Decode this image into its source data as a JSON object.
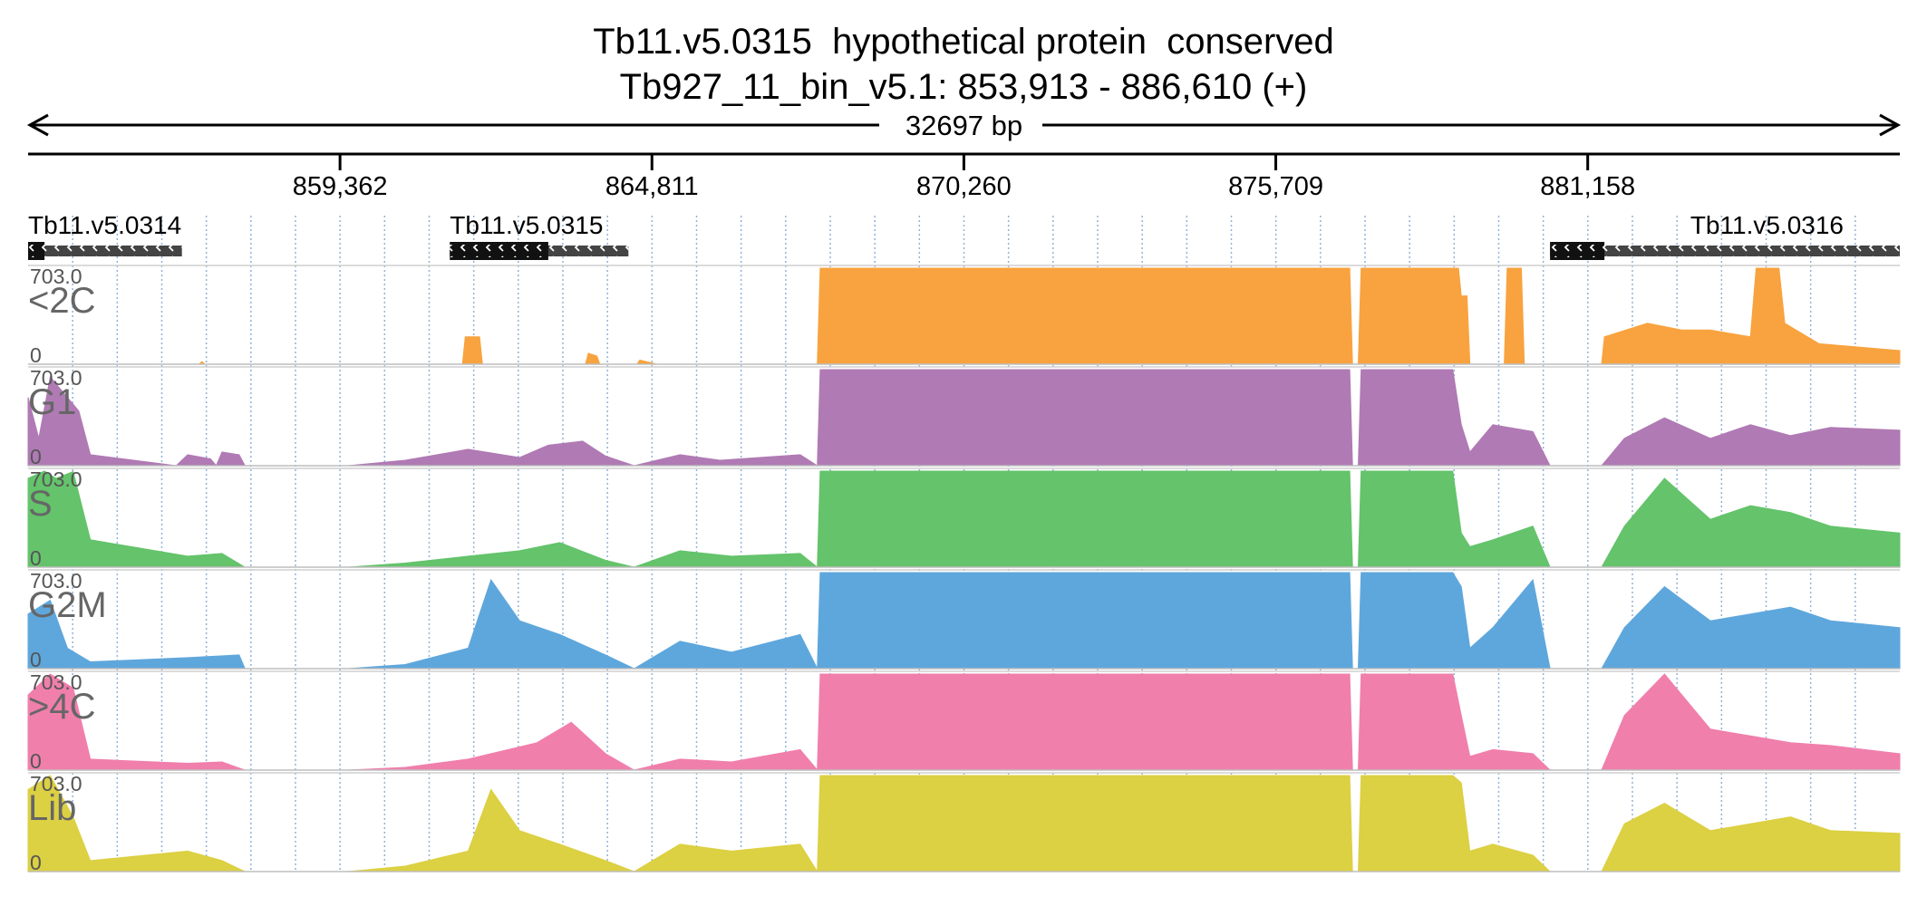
{
  "header": {
    "title_line1": "Tb11.v5.0315  hypothetical protein  conserved",
    "title_line2": "Tb927_11_bin_v5.1: 853,913 - 886,610 (+)"
  },
  "chart_data": {
    "type": "area",
    "chromosome": "Tb927_11_bin_v5.1",
    "xlim": [
      853913,
      886610
    ],
    "span_label": "32697 bp",
    "x_ticks": [
      {
        "value": 859362,
        "label": "859,362"
      },
      {
        "value": 864811,
        "label": "864,811"
      },
      {
        "value": 870260,
        "label": "870,260"
      },
      {
        "value": 875709,
        "label": "875,709"
      },
      {
        "value": 881158,
        "label": "881,158"
      }
    ],
    "genes": [
      {
        "name": "Tb11.v5.0314",
        "start": 853913,
        "end": 856600,
        "strand": "-",
        "cds_end": 854200
      },
      {
        "name": "Tb11.v5.0315",
        "start": 861280,
        "end": 864400,
        "strand": "-",
        "cds_end": 863000
      },
      {
        "name": "Tb11.v5.0316",
        "start": 880500,
        "end": 886610,
        "strand": "-",
        "cds_end": 881450
      }
    ],
    "ylim": [
      0,
      703.0
    ],
    "y_max_label": "703.0",
    "y_min_label": "0",
    "tracks": [
      {
        "name": "<2C",
        "color": "#f8a33f",
        "profile": [
          [
            853913,
            0
          ],
          [
            856900,
            0
          ],
          [
            856950,
            20
          ],
          [
            857000,
            0
          ],
          [
            861500,
            0
          ],
          [
            861550,
            200
          ],
          [
            861800,
            200
          ],
          [
            861850,
            0
          ],
          [
            863650,
            0
          ],
          [
            863700,
            80
          ],
          [
            863850,
            60
          ],
          [
            863900,
            0
          ],
          [
            864550,
            0
          ],
          [
            864600,
            30
          ],
          [
            864800,
            10
          ],
          [
            864900,
            0
          ],
          [
            867700,
            0
          ],
          [
            867750,
            703
          ],
          [
            877000,
            703
          ],
          [
            877050,
            0
          ],
          [
            877150,
            0
          ],
          [
            877200,
            703
          ],
          [
            878900,
            703
          ],
          [
            878950,
            500
          ],
          [
            879050,
            500
          ],
          [
            879100,
            0
          ],
          [
            879700,
            0
          ],
          [
            879750,
            703
          ],
          [
            880000,
            703
          ],
          [
            880050,
            0
          ],
          [
            881400,
            0
          ],
          [
            881450,
            200
          ],
          [
            882200,
            300
          ],
          [
            882800,
            250
          ],
          [
            883300,
            250
          ],
          [
            884000,
            200
          ],
          [
            884100,
            703
          ],
          [
            884500,
            703
          ],
          [
            884600,
            300
          ],
          [
            885200,
            150
          ],
          [
            886610,
            100
          ]
        ]
      },
      {
        "name": "G1",
        "color": "#b07ab4",
        "profile": [
          [
            853913,
            500
          ],
          [
            854100,
            200
          ],
          [
            854300,
            650
          ],
          [
            854800,
            400
          ],
          [
            855000,
            80
          ],
          [
            856500,
            0
          ],
          [
            856700,
            80
          ],
          [
            857100,
            50
          ],
          [
            857200,
            0
          ],
          [
            857300,
            100
          ],
          [
            857600,
            80
          ],
          [
            857700,
            0
          ],
          [
            859500,
            0
          ],
          [
            860500,
            40
          ],
          [
            861600,
            120
          ],
          [
            862500,
            60
          ],
          [
            863000,
            150
          ],
          [
            863600,
            180
          ],
          [
            864000,
            70
          ],
          [
            864500,
            0
          ],
          [
            865300,
            80
          ],
          [
            866000,
            40
          ],
          [
            867400,
            80
          ],
          [
            867700,
            0
          ],
          [
            867750,
            703
          ],
          [
            877000,
            703
          ],
          [
            877050,
            0
          ],
          [
            877150,
            0
          ],
          [
            877200,
            703
          ],
          [
            878800,
            703
          ],
          [
            878950,
            300
          ],
          [
            879100,
            100
          ],
          [
            879500,
            300
          ],
          [
            880200,
            250
          ],
          [
            880500,
            0
          ],
          [
            881400,
            0
          ],
          [
            881800,
            200
          ],
          [
            882500,
            350
          ],
          [
            883300,
            200
          ],
          [
            884000,
            300
          ],
          [
            884700,
            220
          ],
          [
            885400,
            280
          ],
          [
            886610,
            260
          ]
        ]
      },
      {
        "name": "S",
        "color": "#64c36b",
        "profile": [
          [
            853913,
            650
          ],
          [
            854200,
            703
          ],
          [
            854400,
            650
          ],
          [
            854700,
            700
          ],
          [
            855000,
            200
          ],
          [
            856700,
            80
          ],
          [
            857300,
            100
          ],
          [
            857700,
            0
          ],
          [
            859500,
            0
          ],
          [
            860500,
            30
          ],
          [
            861600,
            80
          ],
          [
            862500,
            120
          ],
          [
            863200,
            180
          ],
          [
            864000,
            50
          ],
          [
            864500,
            0
          ],
          [
            865300,
            120
          ],
          [
            866200,
            80
          ],
          [
            867400,
            100
          ],
          [
            867700,
            0
          ],
          [
            867750,
            703
          ],
          [
            877000,
            703
          ],
          [
            877050,
            0
          ],
          [
            877150,
            0
          ],
          [
            877200,
            703
          ],
          [
            878800,
            703
          ],
          [
            878950,
            250
          ],
          [
            879100,
            150
          ],
          [
            879500,
            200
          ],
          [
            880200,
            300
          ],
          [
            880500,
            0
          ],
          [
            881400,
            0
          ],
          [
            881800,
            300
          ],
          [
            882500,
            650
          ],
          [
            883300,
            350
          ],
          [
            884000,
            450
          ],
          [
            884700,
            400
          ],
          [
            885400,
            300
          ],
          [
            886610,
            250
          ]
        ]
      },
      {
        "name": "G2M",
        "color": "#5ea7dc",
        "profile": [
          [
            853913,
            400
          ],
          [
            854300,
            500
          ],
          [
            854600,
            150
          ],
          [
            855000,
            50
          ],
          [
            856700,
            80
          ],
          [
            857600,
            100
          ],
          [
            857700,
            0
          ],
          [
            859500,
            0
          ],
          [
            860500,
            30
          ],
          [
            861600,
            150
          ],
          [
            862000,
            650
          ],
          [
            862500,
            350
          ],
          [
            863200,
            250
          ],
          [
            864000,
            100
          ],
          [
            864500,
            0
          ],
          [
            865300,
            200
          ],
          [
            866200,
            120
          ],
          [
            867400,
            250
          ],
          [
            867700,
            0
          ],
          [
            867750,
            703
          ],
          [
            877000,
            703
          ],
          [
            877050,
            0
          ],
          [
            877150,
            0
          ],
          [
            877200,
            703
          ],
          [
            878800,
            703
          ],
          [
            878950,
            600
          ],
          [
            879100,
            150
          ],
          [
            879500,
            300
          ],
          [
            880200,
            650
          ],
          [
            880500,
            0
          ],
          [
            881400,
            0
          ],
          [
            881800,
            300
          ],
          [
            882500,
            600
          ],
          [
            883300,
            350
          ],
          [
            884000,
            400
          ],
          [
            884700,
            450
          ],
          [
            885400,
            350
          ],
          [
            886610,
            300
          ]
        ]
      },
      {
        "name": ">4C",
        "color": "#f07fac",
        "profile": [
          [
            853913,
            550
          ],
          [
            854300,
            703
          ],
          [
            854700,
            600
          ],
          [
            855000,
            80
          ],
          [
            856700,
            50
          ],
          [
            857300,
            60
          ],
          [
            857700,
            0
          ],
          [
            859500,
            0
          ],
          [
            860500,
            20
          ],
          [
            861600,
            80
          ],
          [
            862800,
            200
          ],
          [
            863400,
            350
          ],
          [
            864000,
            120
          ],
          [
            864500,
            0
          ],
          [
            865300,
            80
          ],
          [
            866200,
            60
          ],
          [
            867400,
            150
          ],
          [
            867700,
            0
          ],
          [
            867750,
            703
          ],
          [
            877000,
            703
          ],
          [
            877050,
            0
          ],
          [
            877150,
            0
          ],
          [
            877200,
            703
          ],
          [
            878800,
            703
          ],
          [
            878950,
            400
          ],
          [
            879100,
            100
          ],
          [
            879500,
            150
          ],
          [
            880200,
            120
          ],
          [
            880500,
            0
          ],
          [
            881400,
            0
          ],
          [
            881800,
            400
          ],
          [
            882500,
            703
          ],
          [
            883300,
            300
          ],
          [
            884000,
            250
          ],
          [
            884700,
            200
          ],
          [
            885400,
            180
          ],
          [
            886610,
            120
          ]
        ]
      },
      {
        "name": "Lib",
        "color": "#dcd043",
        "profile": [
          [
            853913,
            600
          ],
          [
            854300,
            703
          ],
          [
            854700,
            400
          ],
          [
            855000,
            80
          ],
          [
            856700,
            150
          ],
          [
            857300,
            80
          ],
          [
            857700,
            0
          ],
          [
            859500,
            0
          ],
          [
            860500,
            40
          ],
          [
            861600,
            150
          ],
          [
            862000,
            600
          ],
          [
            862500,
            300
          ],
          [
            863200,
            200
          ],
          [
            864000,
            80
          ],
          [
            864500,
            0
          ],
          [
            865300,
            200
          ],
          [
            866200,
            150
          ],
          [
            867400,
            200
          ],
          [
            867700,
            0
          ],
          [
            867750,
            703
          ],
          [
            877000,
            703
          ],
          [
            877050,
            0
          ],
          [
            877150,
            0
          ],
          [
            877200,
            703
          ],
          [
            878800,
            703
          ],
          [
            878950,
            650
          ],
          [
            879100,
            150
          ],
          [
            879500,
            200
          ],
          [
            880200,
            120
          ],
          [
            880500,
            0
          ],
          [
            881400,
            0
          ],
          [
            881800,
            350
          ],
          [
            882500,
            500
          ],
          [
            883300,
            300
          ],
          [
            884000,
            350
          ],
          [
            884700,
            400
          ],
          [
            885400,
            300
          ],
          [
            886610,
            280
          ]
        ]
      }
    ]
  }
}
